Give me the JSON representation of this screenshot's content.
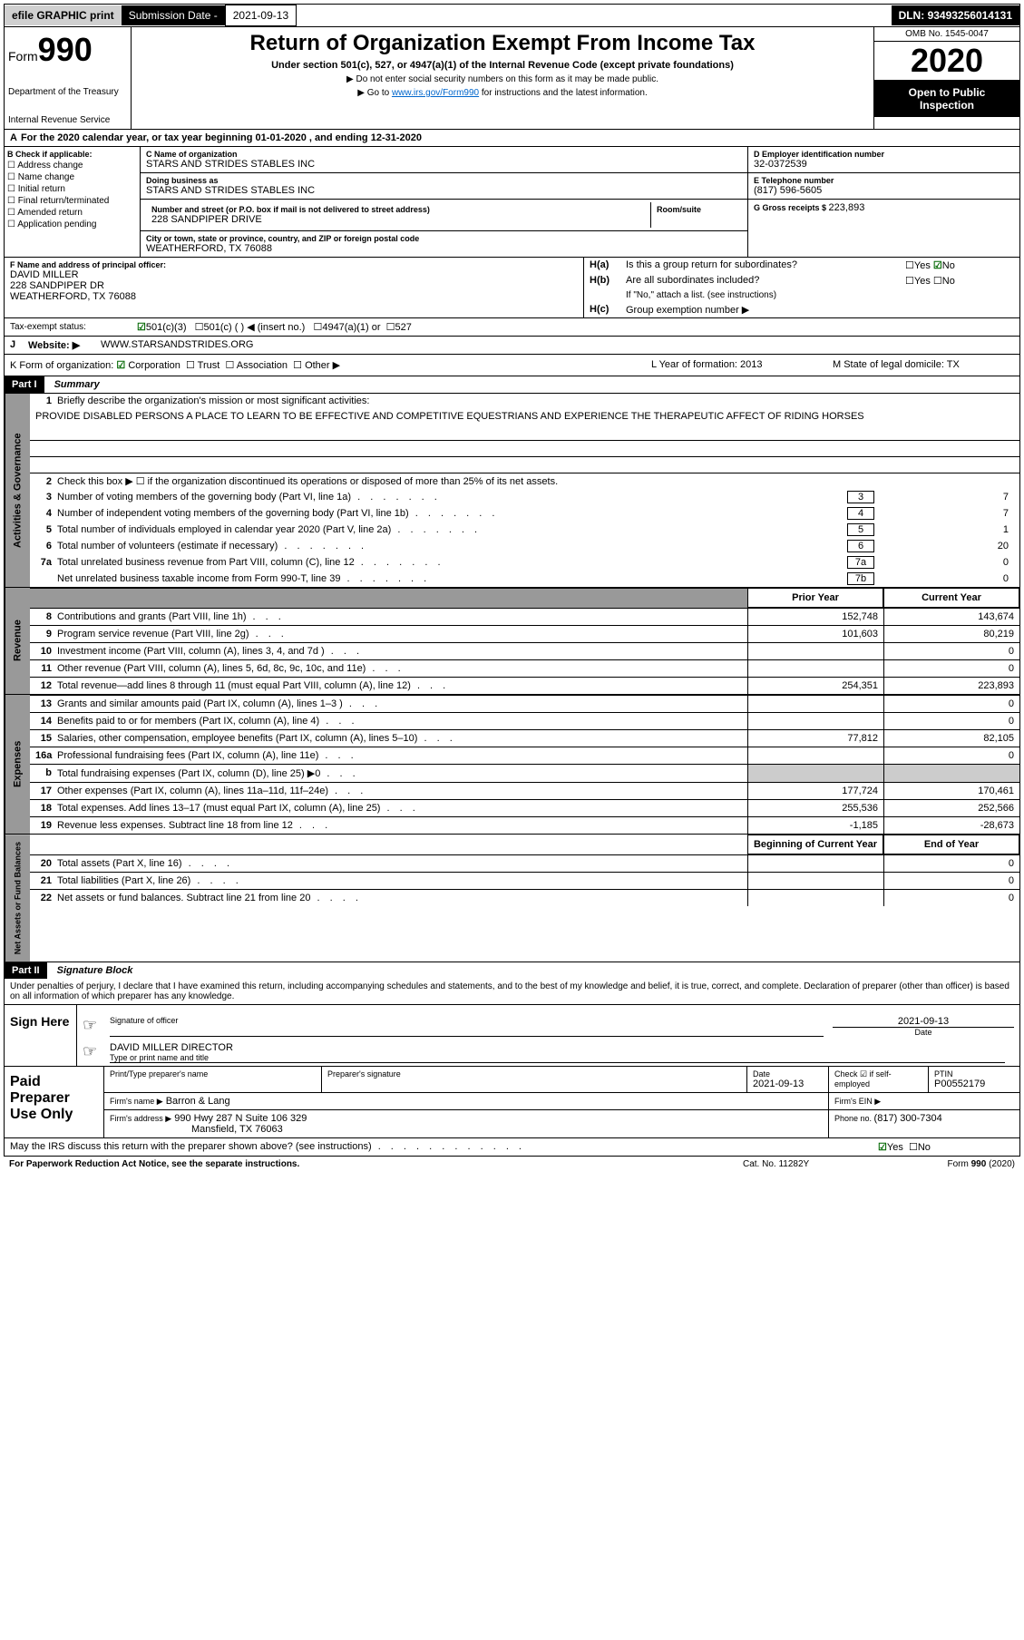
{
  "header_bar": {
    "efile": "efile GRAPHIC print",
    "sub_date_label": "Submission Date - ",
    "sub_date": "2021-09-13",
    "dln_label": "DLN: ",
    "dln": "93493256014131"
  },
  "form_header": {
    "form_label": "Form",
    "form_num": "990",
    "dept1": "Department of the Treasury",
    "dept2": "Internal Revenue Service",
    "title": "Return of Organization Exempt From Income Tax",
    "subtitle": "Under section 501(c), 527, or 4947(a)(1) of the Internal Revenue Code (except private foundations)",
    "instr1": "▶ Do not enter social security numbers on this form as it may be made public.",
    "instr2_pre": "▶ Go to ",
    "instr2_link": "www.irs.gov/Form990",
    "instr2_post": " for instructions and the latest information.",
    "omb": "OMB No. 1545-0047",
    "year": "2020",
    "open_pub1": "Open to Public",
    "open_pub2": "Inspection"
  },
  "section_a": {
    "text": "For the 2020 calendar year, or tax year beginning 01-01-2020     , and ending 12-31-2020"
  },
  "section_b": {
    "label": "B Check if applicable:",
    "items": [
      "Address change",
      "Name change",
      "Initial return",
      "Final return/terminated",
      "Amended return",
      "Application pending"
    ]
  },
  "section_c": {
    "name_label": "C Name of organization",
    "name": "STARS AND STRIDES STABLES INC",
    "dba_label": "Doing business as",
    "dba": "STARS AND STRIDES STABLES INC",
    "addr_label": "Number and street (or P.O. box if mail is not delivered to street address)",
    "room_label": "Room/suite",
    "addr": "228 SANDPIPER DRIVE",
    "city_label": "City or town, state or province, country, and ZIP or foreign postal code",
    "city": "WEATHERFORD, TX  76088"
  },
  "section_d": {
    "label": "D Employer identification number",
    "ein": "32-0372539"
  },
  "section_e": {
    "label": "E Telephone number",
    "phone": "(817) 596-5605"
  },
  "section_g": {
    "label": "G Gross receipts $ ",
    "amount": "223,893"
  },
  "section_f": {
    "label": "F  Name and address of principal officer:",
    "name": "DAVID MILLER",
    "addr1": "228 SANDPIPER DR",
    "addr2": "WEATHERFORD, TX  76088"
  },
  "section_h": {
    "ha_label": "H(a)",
    "ha_text": "Is this a group return for subordinates?",
    "hb_label": "H(b)",
    "hb_text": "Are all subordinates included?",
    "hb_note": "If \"No,\" attach a list. (see instructions)",
    "hc_label": "H(c)",
    "hc_text": "Group exemption number ▶",
    "yes": "Yes",
    "no": "No"
  },
  "section_i": {
    "label": "Tax-exempt status:",
    "opt1": "501(c)(3)",
    "opt2": "501(c) (  ) ◀ (insert no.)",
    "opt3": "4947(a)(1) or",
    "opt4": "527"
  },
  "section_j": {
    "label": "J",
    "website_label": "Website: ▶",
    "website": "WWW.STARSANDSTRIDES.ORG"
  },
  "section_k": {
    "label": "K Form of organization:",
    "opts": [
      "Corporation",
      "Trust",
      "Association",
      "Other ▶"
    ]
  },
  "section_l": {
    "label": "L Year of formation: ",
    "year": "2013"
  },
  "section_m": {
    "label": "M State of legal domicile: ",
    "state": "TX"
  },
  "part1": {
    "header": "Part I",
    "title": "Summary",
    "line1_label": "1",
    "line1_text": "Briefly describe the organization's mission or most significant activities:",
    "mission": "PROVIDE DISABLED PERSONS A PLACE TO LEARN TO BE EFFECTIVE AND COMPETITIVE EQUESTRIANS AND EXPERIENCE THE THERAPEUTIC AFFECT OF RIDING HORSES",
    "line2_label": "2",
    "line2_text": "Check this box ▶ ☐  if the organization discontinued its operations or disposed of more than 25% of its net assets.",
    "vert_activities": "Activities & Governance",
    "vert_revenue": "Revenue",
    "vert_expenses": "Expenses",
    "vert_net": "Net Assets or Fund Balances",
    "prior_year": "Prior Year",
    "current_year": "Current Year",
    "begin_year": "Beginning of Current Year",
    "end_year": "End of Year",
    "lines_gov": [
      {
        "num": "3",
        "text": "Number of voting members of the governing body (Part VI, line 1a)",
        "box": "3",
        "val": "7"
      },
      {
        "num": "4",
        "text": "Number of independent voting members of the governing body (Part VI, line 1b)",
        "box": "4",
        "val": "7"
      },
      {
        "num": "5",
        "text": "Total number of individuals employed in calendar year 2020 (Part V, line 2a)",
        "box": "5",
        "val": "1"
      },
      {
        "num": "6",
        "text": "Total number of volunteers (estimate if necessary)",
        "box": "6",
        "val": "20"
      },
      {
        "num": "7a",
        "text": "Total unrelated business revenue from Part VIII, column (C), line 12",
        "box": "7a",
        "val": "0"
      },
      {
        "num": "",
        "text": "Net unrelated business taxable income from Form 990-T, line 39",
        "box": "7b",
        "val": "0"
      }
    ],
    "lines_rev": [
      {
        "num": "8",
        "text": "Contributions and grants (Part VIII, line 1h)",
        "prior": "152,748",
        "current": "143,674"
      },
      {
        "num": "9",
        "text": "Program service revenue (Part VIII, line 2g)",
        "prior": "101,603",
        "current": "80,219"
      },
      {
        "num": "10",
        "text": "Investment income (Part VIII, column (A), lines 3, 4, and 7d )",
        "prior": "",
        "current": "0"
      },
      {
        "num": "11",
        "text": "Other revenue (Part VIII, column (A), lines 5, 6d, 8c, 9c, 10c, and 11e)",
        "prior": "",
        "current": "0"
      },
      {
        "num": "12",
        "text": "Total revenue—add lines 8 through 11 (must equal Part VIII, column (A), line 12)",
        "prior": "254,351",
        "current": "223,893"
      }
    ],
    "lines_exp": [
      {
        "num": "13",
        "text": "Grants and similar amounts paid (Part IX, column (A), lines 1–3 )",
        "prior": "",
        "current": "0"
      },
      {
        "num": "14",
        "text": "Benefits paid to or for members (Part IX, column (A), line 4)",
        "prior": "",
        "current": "0"
      },
      {
        "num": "15",
        "text": "Salaries, other compensation, employee benefits (Part IX, column (A), lines 5–10)",
        "prior": "77,812",
        "current": "82,105"
      },
      {
        "num": "16a",
        "text": "Professional fundraising fees (Part IX, column (A), line 11e)",
        "prior": "",
        "current": "0"
      },
      {
        "num": "b",
        "text": "Total fundraising expenses (Part IX, column (D), line 25) ▶0",
        "prior": "shaded",
        "current": "shaded"
      },
      {
        "num": "17",
        "text": "Other expenses (Part IX, column (A), lines 11a–11d, 11f–24e)",
        "prior": "177,724",
        "current": "170,461"
      },
      {
        "num": "18",
        "text": "Total expenses. Add lines 13–17 (must equal Part IX, column (A), line 25)",
        "prior": "255,536",
        "current": "252,566"
      },
      {
        "num": "19",
        "text": "Revenue less expenses. Subtract line 18 from line 12",
        "prior": "-1,185",
        "current": "-28,673"
      }
    ],
    "lines_net": [
      {
        "num": "20",
        "text": "Total assets (Part X, line 16)",
        "prior": "",
        "current": "0"
      },
      {
        "num": "21",
        "text": "Total liabilities (Part X, line 26)",
        "prior": "",
        "current": "0"
      },
      {
        "num": "22",
        "text": "Net assets or fund balances. Subtract line 21 from line 20",
        "prior": "",
        "current": "0"
      }
    ]
  },
  "part2": {
    "header": "Part II",
    "title": "Signature Block",
    "declaration": "Under penalties of perjury, I declare that I have examined this return, including accompanying schedules and statements, and to the best of my knowledge and belief, it is true, correct, and complete. Declaration of preparer (other than officer) is based on all information of which preparer has any knowledge.",
    "sign_here": "Sign Here",
    "sig_officer_label": "Signature of officer",
    "date_label": "Date",
    "sig_date": "2021-09-13",
    "name_title": "DAVID MILLER  DIRECTOR",
    "name_title_label": "Type or print name and title",
    "paid_prep": "Paid Preparer Use Only",
    "prep_name_label": "Print/Type preparer's name",
    "prep_sig_label": "Preparer's signature",
    "prep_date_label": "Date",
    "prep_date": "2021-09-13",
    "self_emp_label": "Check ☑ if self-employed",
    "ptin_label": "PTIN",
    "ptin": "P00552179",
    "firm_name_label": "Firm's name     ▶",
    "firm_name": "Barron & Lang",
    "firm_ein_label": "Firm's EIN ▶",
    "firm_addr_label": "Firm's address ▶",
    "firm_addr1": "990 Hwy 287 N Suite 106 329",
    "firm_addr2": "Mansfield, TX  76063",
    "phone_label": "Phone no. ",
    "phone": "(817) 300-7304",
    "discuss": "May the IRS discuss this return with the preparer shown above? (see instructions)",
    "yes": "Yes",
    "no": "No"
  },
  "footer": {
    "left": "For Paperwork Reduction Act Notice, see the separate instructions.",
    "mid": "Cat. No. 11282Y",
    "right": "Form 990 (2020)"
  },
  "colors": {
    "black": "#000000",
    "white": "#ffffff",
    "gray_header": "#999999",
    "gray_light": "#d0d0d0",
    "gray_shaded": "#cccccc",
    "link_blue": "#0066cc",
    "check_green": "#006600"
  }
}
